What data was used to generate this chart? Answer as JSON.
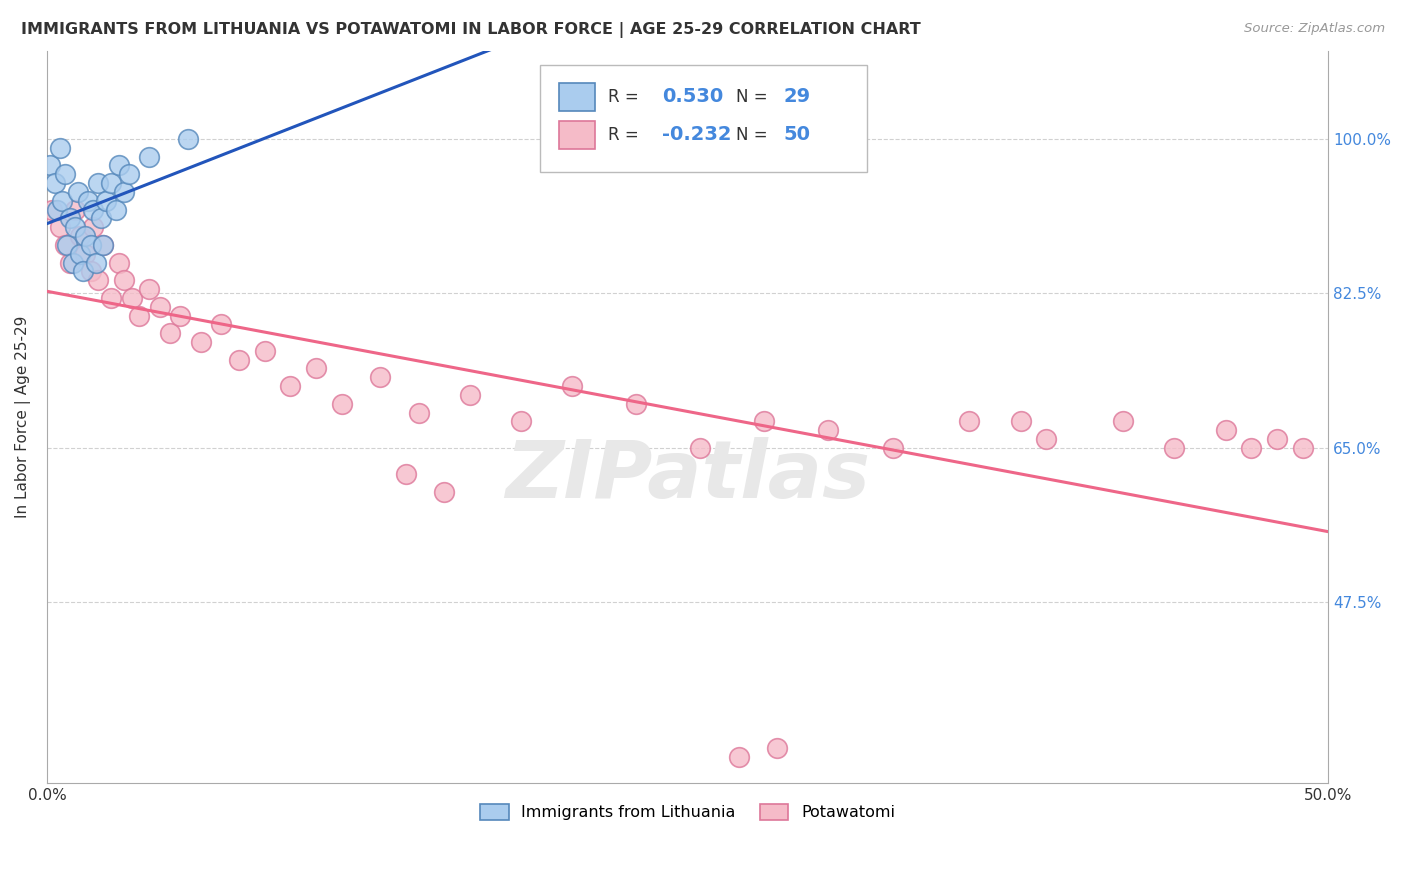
{
  "title": "IMMIGRANTS FROM LITHUANIA VS POTAWATOMI IN LABOR FORCE | AGE 25-29 CORRELATION CHART",
  "source": "Source: ZipAtlas.com",
  "ylabel": "In Labor Force | Age 25-29",
  "xlim": [
    0.0,
    0.5
  ],
  "ylim": [
    0.27,
    1.1
  ],
  "xtick_positions": [
    0.0,
    0.5
  ],
  "xtick_labels": [
    "0.0%",
    "50.0%"
  ],
  "yticks": [
    0.475,
    0.65,
    0.825,
    1.0
  ],
  "ytick_labels": [
    "47.5%",
    "65.0%",
    "82.5%",
    "100.0%"
  ],
  "grid_color": "#cccccc",
  "background_color": "#ffffff",
  "series1_color": "#aaccee",
  "series1_edge": "#5588bb",
  "series2_color": "#f5bbc8",
  "series2_edge": "#dd7799",
  "trendline1_color": "#2255bb",
  "trendline2_color": "#ee6688",
  "series1_label": "Immigrants from Lithuania",
  "series2_label": "Potawatomi",
  "legend_R1_val": "0.530",
  "legend_N1_val": "29",
  "legend_R2_val": "-0.232",
  "legend_N2_val": "50",
  "lithuania_x": [
    0.001,
    0.003,
    0.004,
    0.005,
    0.006,
    0.007,
    0.008,
    0.009,
    0.01,
    0.011,
    0.012,
    0.013,
    0.014,
    0.015,
    0.016,
    0.017,
    0.018,
    0.019,
    0.02,
    0.021,
    0.022,
    0.023,
    0.025,
    0.027,
    0.028,
    0.03,
    0.032,
    0.04,
    0.055
  ],
  "lithuania_y": [
    0.97,
    0.95,
    0.92,
    0.99,
    0.93,
    0.96,
    0.88,
    0.91,
    0.86,
    0.9,
    0.94,
    0.87,
    0.85,
    0.89,
    0.93,
    0.88,
    0.92,
    0.86,
    0.95,
    0.91,
    0.88,
    0.93,
    0.95,
    0.92,
    0.97,
    0.94,
    0.96,
    0.98,
    1.0
  ],
  "potawatomi_x": [
    0.002,
    0.005,
    0.007,
    0.009,
    0.011,
    0.013,
    0.015,
    0.017,
    0.018,
    0.02,
    0.022,
    0.025,
    0.028,
    0.03,
    0.033,
    0.036,
    0.04,
    0.044,
    0.048,
    0.052,
    0.06,
    0.068,
    0.075,
    0.085,
    0.095,
    0.105,
    0.115,
    0.13,
    0.145,
    0.165,
    0.185,
    0.205,
    0.23,
    0.255,
    0.28,
    0.305,
    0.33,
    0.36,
    0.39,
    0.42,
    0.44,
    0.46,
    0.47,
    0.48,
    0.49,
    0.27,
    0.285,
    0.14,
    0.155,
    0.38
  ],
  "potawatomi_y": [
    0.92,
    0.9,
    0.88,
    0.86,
    0.92,
    0.89,
    0.87,
    0.85,
    0.9,
    0.84,
    0.88,
    0.82,
    0.86,
    0.84,
    0.82,
    0.8,
    0.83,
    0.81,
    0.78,
    0.8,
    0.77,
    0.79,
    0.75,
    0.76,
    0.72,
    0.74,
    0.7,
    0.73,
    0.69,
    0.71,
    0.68,
    0.72,
    0.7,
    0.65,
    0.68,
    0.67,
    0.65,
    0.68,
    0.66,
    0.68,
    0.65,
    0.67,
    0.65,
    0.66,
    0.65,
    0.3,
    0.31,
    0.62,
    0.6,
    0.68
  ]
}
